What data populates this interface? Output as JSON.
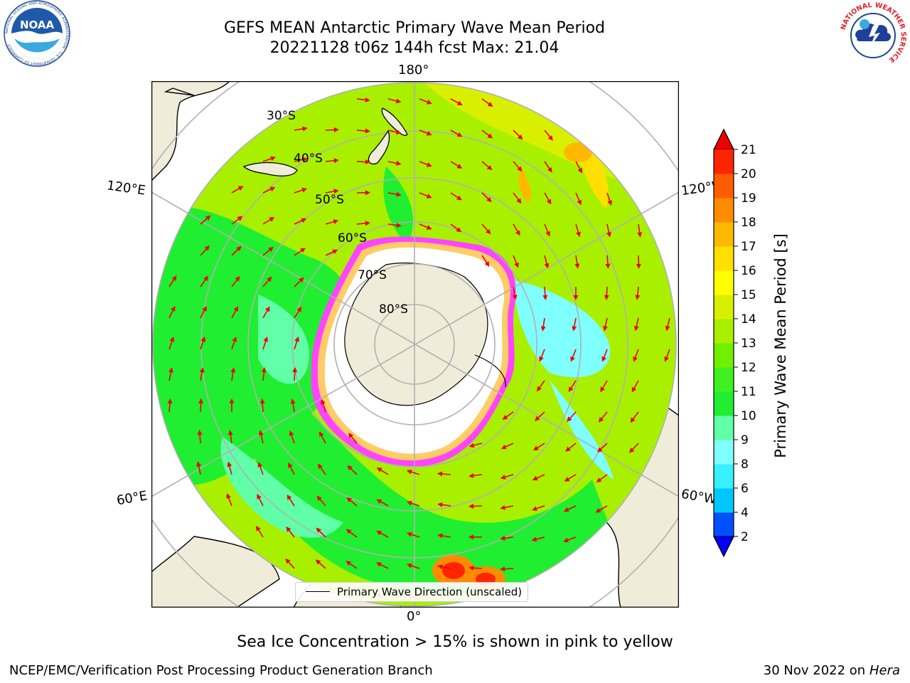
{
  "header": {
    "title_line1": "GEFS MEAN Antarctic Primary Wave Mean Period",
    "title_line2": "20221128 t06z 144h fcst   Max: 21.04"
  },
  "logos": {
    "left": {
      "name": "noaa-logo",
      "text": "NOAA",
      "ring_text": "NATIONAL OCEANIC AND ATMOSPHERIC ADMINISTRATION · U.S. DEPARTMENT OF COMMERCE"
    },
    "right": {
      "name": "nws-logo",
      "ring_text": "NATIONAL WEATHER SERVICE"
    }
  },
  "map": {
    "projection": "south-polar-stereographic",
    "longitude_labels": {
      "top": "180°",
      "bottom": "0°",
      "left_upper": "120°E",
      "left_lower": "60°E",
      "right_upper": "120°W",
      "right_lower": "60°W"
    },
    "latitude_labels": [
      "30°S",
      "40°S",
      "50°S",
      "60°S",
      "70°S",
      "80°S"
    ],
    "legend_label": "Primary Wave Direction (unscaled)",
    "arrow_color": "#ee0000",
    "ice_colors": [
      "#ff44ff",
      "#ff99cc",
      "#ffcc66"
    ]
  },
  "colorbar": {
    "label": "Primary Wave Mean Period [s]",
    "ticks": [
      "2",
      "4",
      "6",
      "8",
      "9",
      "10",
      "11",
      "12",
      "13",
      "14",
      "15",
      "16",
      "17",
      "18",
      "19",
      "20",
      "21"
    ],
    "colors": [
      "#0050ff",
      "#00c8ff",
      "#38f0ff",
      "#80ffff",
      "#60ffa8",
      "#20ee30",
      "#40f020",
      "#70f000",
      "#a8f000",
      "#d8f000",
      "#ffff00",
      "#ffe000",
      "#ffb800",
      "#ff8c00",
      "#ff5c00",
      "#ff2400"
    ],
    "under_color": "#0000ff",
    "over_color": "#ee0000"
  },
  "footer": {
    "note": "Sea Ice Concentration > 15% is shown in pink to yellow",
    "left": "NCEP/EMC/Verification Post Processing Product Generation Branch",
    "right_date": "30 Nov 2022 on",
    "right_host": "Hera"
  }
}
